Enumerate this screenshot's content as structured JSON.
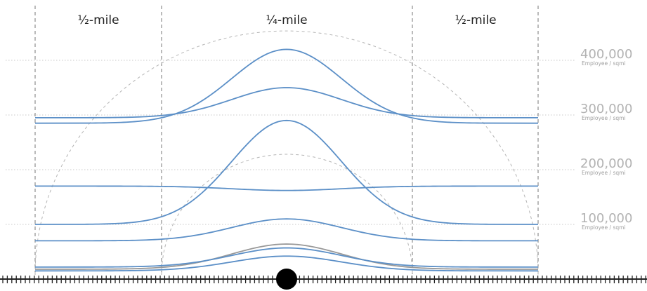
{
  "zones": [
    {
      "label": "½-mile"
    },
    {
      "label": "¼-mile"
    },
    {
      "label": "½-mile"
    }
  ],
  "density_levels": [
    {
      "value": "400,000",
      "unit": "Employee / sqmi"
    },
    {
      "value": "300,000",
      "unit": "Employee / sqmi"
    },
    {
      "value": "200,000",
      "unit": "Employee / sqmi"
    },
    {
      "value": "100,000",
      "unit": "Employee / sqmi"
    }
  ],
  "colors": {
    "curve": "#5b8fc7",
    "curve_grey": "#999999",
    "grid": "#c8c8c8",
    "divider": "#777777",
    "track": "#222222",
    "station": "#000000"
  },
  "profiles": [
    {
      "outer": 285000,
      "center": 420000
    },
    {
      "outer": 295000,
      "center": 350000
    },
    {
      "outer": 100000,
      "center": 290000
    },
    {
      "outer": 170000,
      "center": 162000
    },
    {
      "outer": 70000,
      "center": 110000
    },
    {
      "outer": 22000,
      "center": 57000
    },
    {
      "outer": 15000,
      "center": 42000
    }
  ],
  "profiles_grey": [
    {
      "outer": 18000,
      "center": 64000
    }
  ],
  "icons": {
    "station": "station-dot-icon",
    "track": "rail-track-icon"
  }
}
